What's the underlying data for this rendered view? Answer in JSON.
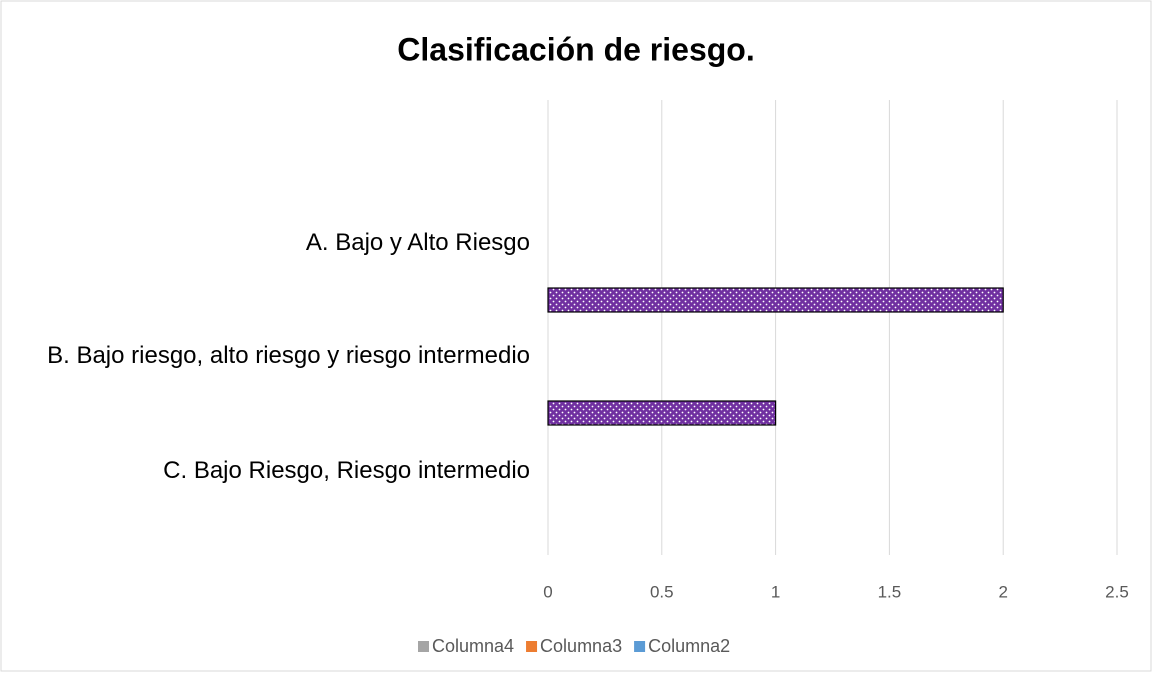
{
  "chart_data": {
    "type": "bar",
    "orientation": "horizontal",
    "title": "Clasificación de riesgo.",
    "categories": [
      "A. Bajo y Alto Riesgo",
      "B. Bajo riesgo, alto riesgo y riesgo intermedio",
      "C. Bajo Riesgo, Riesgo intermedio"
    ],
    "series": [
      {
        "name": "Columna2",
        "color": "#5b9bd5",
        "bar_fill": "#7030a0",
        "pattern": "dots",
        "values": [
          2,
          1,
          null
        ]
      },
      {
        "name": "Columna3",
        "color": "#ed7d31",
        "values": [
          null,
          null,
          null
        ]
      },
      {
        "name": "Columna4",
        "color": "#a5a5a5",
        "values": [
          null,
          null,
          null
        ]
      }
    ],
    "xlim": [
      0,
      2.5
    ],
    "xticks": [
      0,
      0.5,
      1,
      1.5,
      2,
      2.5
    ],
    "grid": true,
    "legend": "bottom"
  }
}
